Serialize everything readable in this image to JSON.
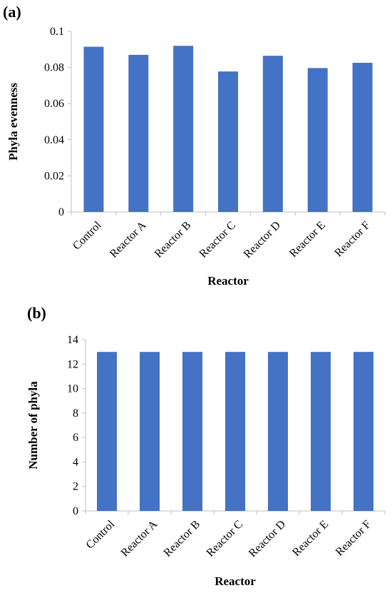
{
  "chart_data": [
    {
      "type": "bar",
      "panel_label": "(a)",
      "categories": [
        "Control",
        "Reactor A",
        "Reactor B",
        "Reactor C",
        "Reactor D",
        "Reactor E",
        "Reactor F"
      ],
      "values": [
        0.0915,
        0.087,
        0.092,
        0.0778,
        0.0865,
        0.0797,
        0.0826
      ],
      "xlabel": "Reactor",
      "ylabel": "Phyla evenness",
      "ylim": [
        0,
        0.1
      ],
      "yticks": [
        "0",
        "0.02",
        "0.04",
        "0.06",
        "0.08",
        "0.1"
      ],
      "bar_color": "#4472c4",
      "grid": false,
      "legend": "none"
    },
    {
      "type": "bar",
      "panel_label": "(b)",
      "categories": [
        "Control",
        "Reactor A",
        "Reactor B",
        "Reactor C",
        "Reactor D",
        "Reactor E",
        "Reactor F"
      ],
      "values": [
        13,
        13,
        13,
        13,
        13,
        13,
        13
      ],
      "xlabel": "Reactor",
      "ylabel": "Number of phyla",
      "ylim": [
        0,
        14
      ],
      "yticks": [
        "0",
        "2",
        "4",
        "6",
        "8",
        "10",
        "12",
        "14"
      ],
      "bar_color": "#4472c4",
      "grid": false,
      "legend": "none"
    }
  ]
}
